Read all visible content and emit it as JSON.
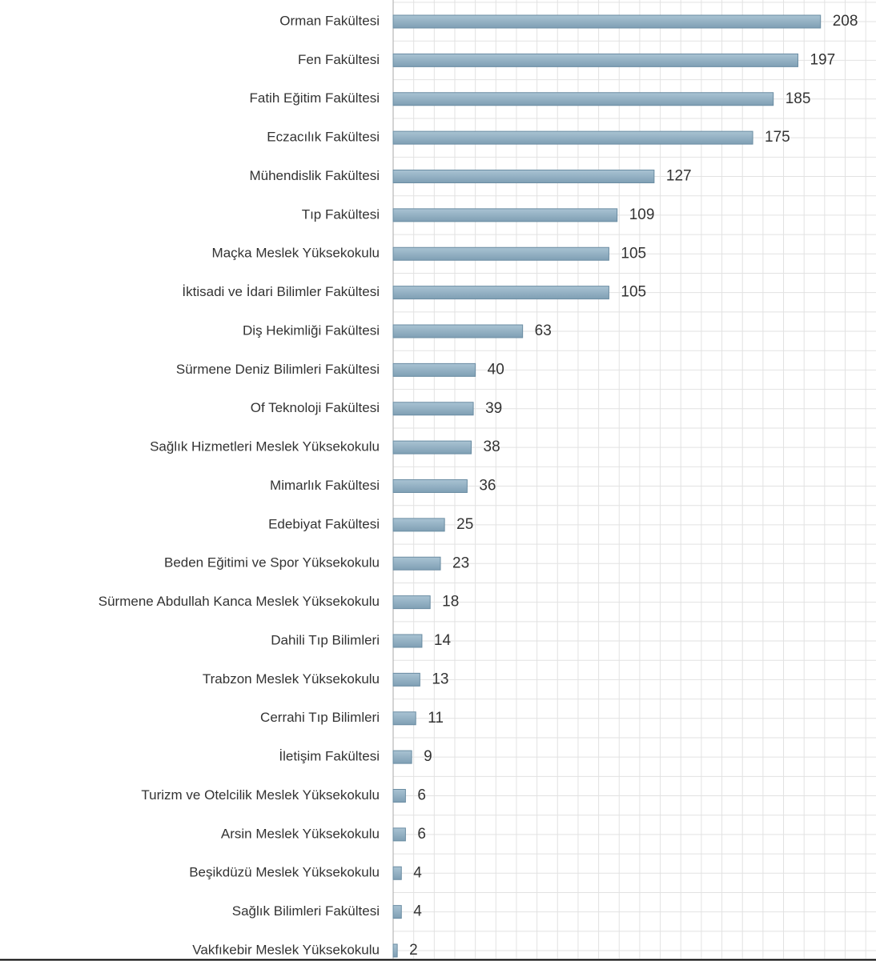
{
  "chart_data": {
    "type": "bar",
    "orientation": "horizontal",
    "categories": [
      "Orman Fakültesi",
      "Fen Fakültesi",
      "Fatih Eğitim Fakültesi",
      "Eczacılık Fakültesi",
      "Mühendislik Fakültesi",
      "Tıp Fakültesi",
      "Maçka Meslek Yüksekokulu",
      "İktisadi ve İdari Bilimler Fakültesi",
      "Diş Hekimliği Fakültesi",
      "Sürmene Deniz Bilimleri Fakültesi",
      "Of Teknoloji Fakültesi",
      "Sağlık Hizmetleri Meslek Yüksekokulu",
      "Mimarlık Fakültesi",
      "Edebiyat Fakültesi",
      "Beden Eğitimi ve Spor Yüksekokulu",
      "Sürmene Abdullah Kanca Meslek Yüksekokulu",
      "Dahili Tıp Bilimleri",
      "Trabzon Meslek Yüksekokulu",
      "Cerrahi Tıp Bilimleri",
      "İletişim Fakültesi",
      "Turizm ve Otelcilik Meslek Yüksekokulu",
      "Arsin Meslek Yüksekokulu",
      "Beşikdüzü Meslek Yüksekokulu",
      "Sağlık Bilimleri Fakültesi",
      "Vakfıkebir Meslek Yüksekokulu"
    ],
    "values": [
      208,
      197,
      185,
      175,
      127,
      109,
      105,
      105,
      63,
      40,
      39,
      38,
      36,
      25,
      23,
      18,
      14,
      13,
      11,
      9,
      6,
      6,
      4,
      4,
      2
    ],
    "color": "#8fb0c4",
    "xlim": [
      0,
      235
    ],
    "xticks": [
      0,
      10,
      20,
      30,
      40,
      50,
      60,
      70,
      80,
      90,
      100,
      110,
      120,
      130,
      140,
      150,
      160,
      170,
      180,
      190,
      200,
      210,
      220,
      230
    ],
    "grid": true
  }
}
